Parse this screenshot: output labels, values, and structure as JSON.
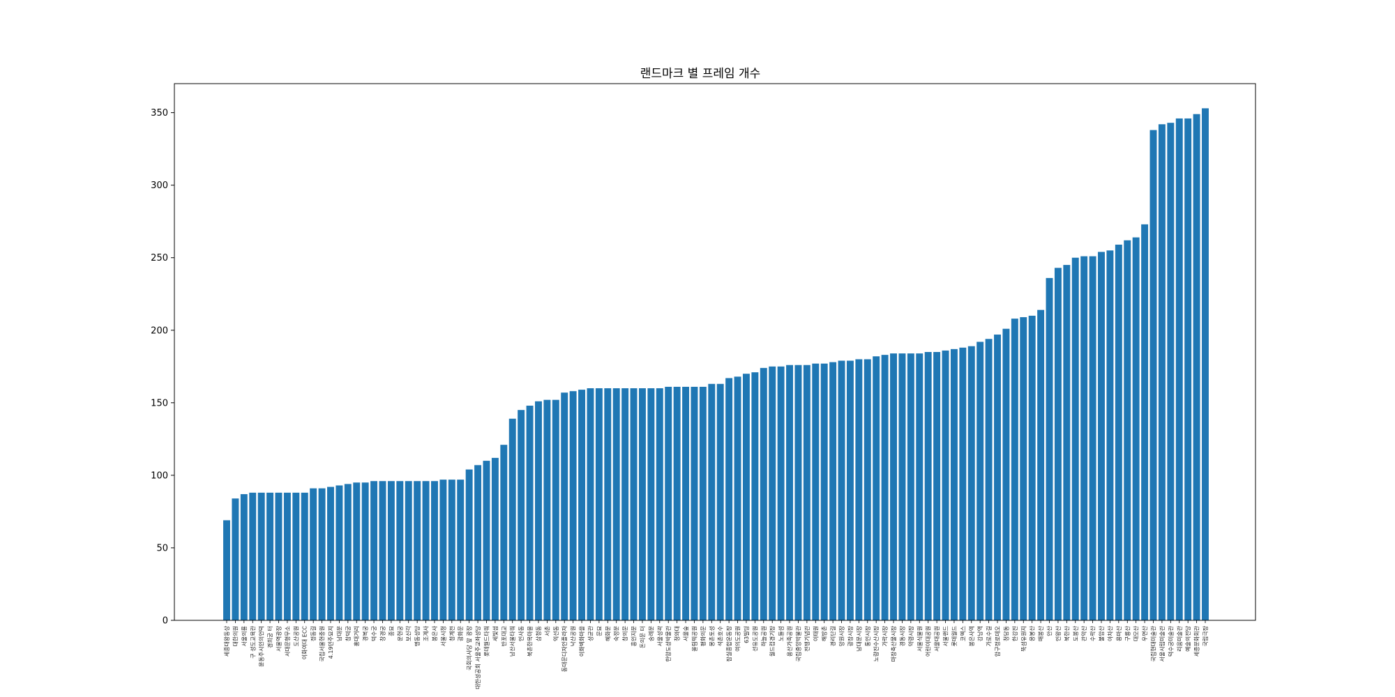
{
  "chart_data": {
    "type": "bar",
    "title": "랜드마크 별 프레임 개수",
    "xlabel": "",
    "ylabel": "",
    "ylim": [
      0,
      370
    ],
    "yticks": [
      0,
      50,
      100,
      150,
      200,
      250,
      300,
      350
    ],
    "grid": false,
    "bar_color": "#1f77b4",
    "values": [
      69,
      84,
      87,
      88,
      88,
      88,
      88,
      88,
      88,
      88,
      91,
      91,
      92,
      93,
      94,
      95,
      95,
      96,
      96,
      96,
      96,
      96,
      96,
      96,
      96,
      97,
      97,
      97,
      104,
      107,
      110,
      112,
      121,
      139,
      145,
      148,
      151,
      152,
      152,
      157,
      158,
      159,
      160,
      160,
      160,
      160,
      160,
      160,
      160,
      160,
      160,
      161,
      161,
      161,
      161,
      161,
      163,
      163,
      167,
      168,
      170,
      171,
      174,
      175,
      175,
      176,
      176,
      176,
      177,
      177,
      178,
      179,
      179,
      180,
      180,
      182,
      183,
      184,
      184,
      184,
      184,
      185,
      185,
      186,
      187,
      188,
      189,
      192,
      194,
      197,
      201,
      208,
      209,
      210,
      214,
      236,
      243,
      245,
      250,
      251,
      251,
      254,
      255,
      259,
      262,
      264,
      273,
      338,
      342,
      343,
      346,
      346,
      349,
      353
    ],
    "categories": [
      "세종대왕동상",
      "대한의원",
      "서울의룡",
      "구 성도교육관",
      "윤동주시인의언덕",
      "경희궁 터",
      "서울역광장",
      "서대문형무소",
      "도산공원",
      "이화여대 ECC",
      "정동길",
      "국립서울현충원",
      "4.19민주묘지",
      "남대문",
      "창덕궁",
      "홍대거리",
      "경복궁",
      "덕수궁",
      "창경궁",
      "종묘",
      "운현궁",
      "보신각",
      "명동성당",
      "조계사",
      "봉은사",
      "서울시청",
      "청계천",
      "광화문",
      "국회의사당 앞 광장",
      "대한성공회 서울주교좌성당",
      "롯데월드타워",
      "세빛섬",
      "반포대교",
      "남산서울타워",
      "인사동",
      "북촌한옥마을",
      "삼청동",
      "서촌",
      "익선동",
      "동대문디자인플라자",
      "낙산공원",
      "이화벽화마을",
      "성균관",
      "문묘",
      "혜화문",
      "숙정문",
      "창의문",
      "흥인지문",
      "돈의문 터",
      "숭례문",
      "서울성곽",
      "한양도성박물관",
      "청와대",
      "서울숲",
      "올림픽공원",
      "평화의문",
      "몽촌토성",
      "석촌호수",
      "잠실종합운동장",
      "여의도공원",
      "63빌딩",
      "선유도공원",
      "하늘공원",
      "월드컵경기장",
      "노들섬",
      "용산가족공원",
      "국립중앙박물관",
      "전쟁기념관",
      "이태원",
      "해방촌",
      "경리단길",
      "망원시장",
      "광장시장",
      "남대문시장",
      "통인시장",
      "노량진수산시장",
      "가락시장",
      "마장축산물시장",
      "경동시장",
      "약령시장",
      "서울식물원",
      "어린이대공원",
      "서울대공원",
      "서울랜드",
      "롯데월드",
      "코엑스",
      "봉은사역",
      "강남역",
      "가로수길",
      "압구정로데오",
      "청담동",
      "한강진",
      "뚝섬유원지",
      "응봉산",
      "매봉산",
      "안산",
      "인왕산",
      "북한산",
      "도봉산",
      "관악산",
      "수락산",
      "불암산",
      "아차산",
      "용마산",
      "구룡산",
      "대모산",
      "우면산",
      "국립현대미술관",
      "서울시립미술관",
      "덕수궁미술관",
      "리움미술관",
      "예술의전당",
      "세종문화회관",
      "국립극장"
    ]
  }
}
